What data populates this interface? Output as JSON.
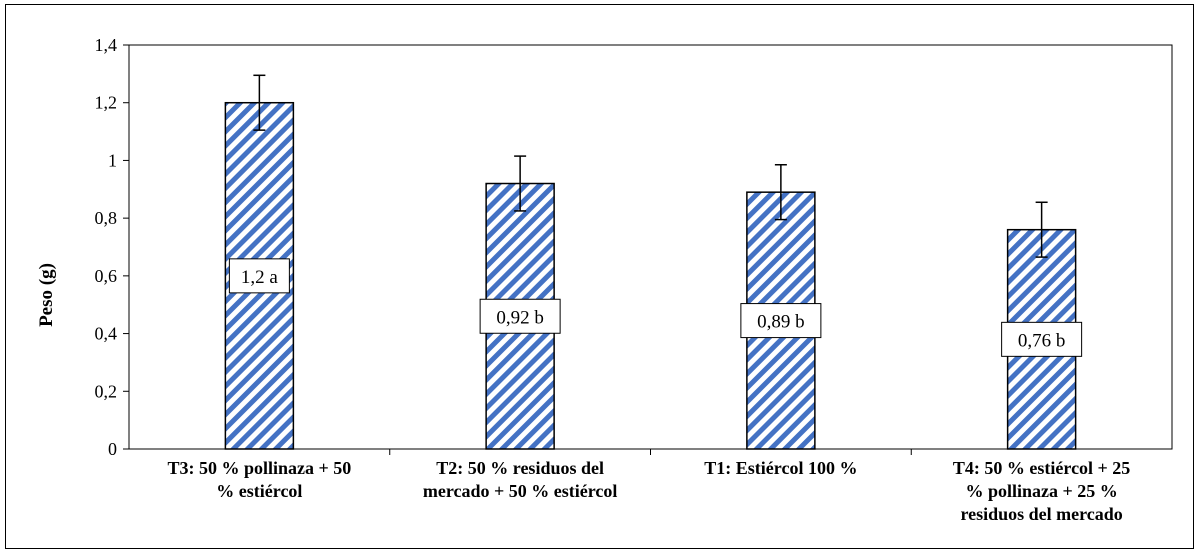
{
  "chart_data": {
    "type": "bar",
    "ylabel": "Peso (g)",
    "xlabel": "",
    "ylim": [
      0,
      1.4
    ],
    "yticks": [
      "0",
      "0,2",
      "0,4",
      "0,6",
      "0,8",
      "1",
      "1,2",
      "1,4"
    ],
    "ytick_values": [
      0,
      0.2,
      0.4,
      0.6,
      0.8,
      1.0,
      1.2,
      1.4
    ],
    "categories": [
      [
        "T3: 50 % pollinaza + 50",
        "% estiércol"
      ],
      [
        "T2: 50 % residuos del",
        "mercado + 50 % estiércol"
      ],
      [
        "T1: Estiércol 100 %"
      ],
      [
        "T4: 50 % estiércol + 25",
        "% pollinaza + 25 %",
        "residuos del mercado"
      ]
    ],
    "values": [
      1.2,
      0.92,
      0.89,
      0.76
    ],
    "error": [
      0.095,
      0.095,
      0.095,
      0.095
    ],
    "data_labels": [
      "1,2 a",
      "0,92 b",
      "0,89 b",
      "0,76 b"
    ],
    "grid": false,
    "legend": "none",
    "colors": {
      "bar_stripe": "#4472c4",
      "bar_border": "#000000"
    }
  }
}
